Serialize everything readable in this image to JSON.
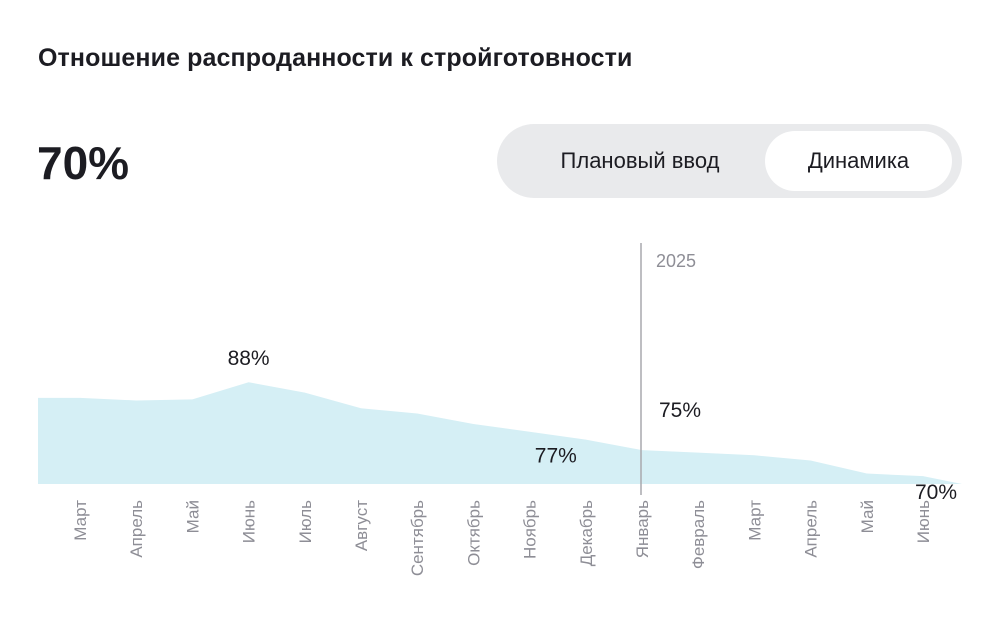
{
  "title": "Отношение распроданности к стройготовности",
  "current_value": "70%",
  "toggle": {
    "options": [
      "Плановый ввод",
      "Динамика"
    ],
    "selected": "Динамика"
  },
  "chart_data": {
    "type": "area",
    "categories": [
      "Март",
      "Апрель",
      "Май",
      "Июнь",
      "Июль",
      "Август",
      "Сентябрь",
      "Октябрь",
      "Ноябрь",
      "Декабрь",
      "Январь",
      "Февраль",
      "Март",
      "Апрель",
      "Май",
      "Июнь"
    ],
    "values": [
      85,
      84.5,
      84.7,
      88,
      86,
      83,
      82,
      80,
      78.5,
      77,
      75,
      74.5,
      74,
      73,
      70.5,
      70
    ],
    "data_labels": [
      {
        "index": 3,
        "text": "88%"
      },
      {
        "index": 9,
        "text": "77%"
      },
      {
        "index": 10,
        "text": "75%"
      },
      {
        "index": 15,
        "text": "70%"
      }
    ],
    "year_marker": {
      "index": 10,
      "label": "2025"
    },
    "fill_color": "#d5eff5",
    "marker_color": "#a9a9ad",
    "tick_color": "#8e8e96",
    "grid": false
  }
}
